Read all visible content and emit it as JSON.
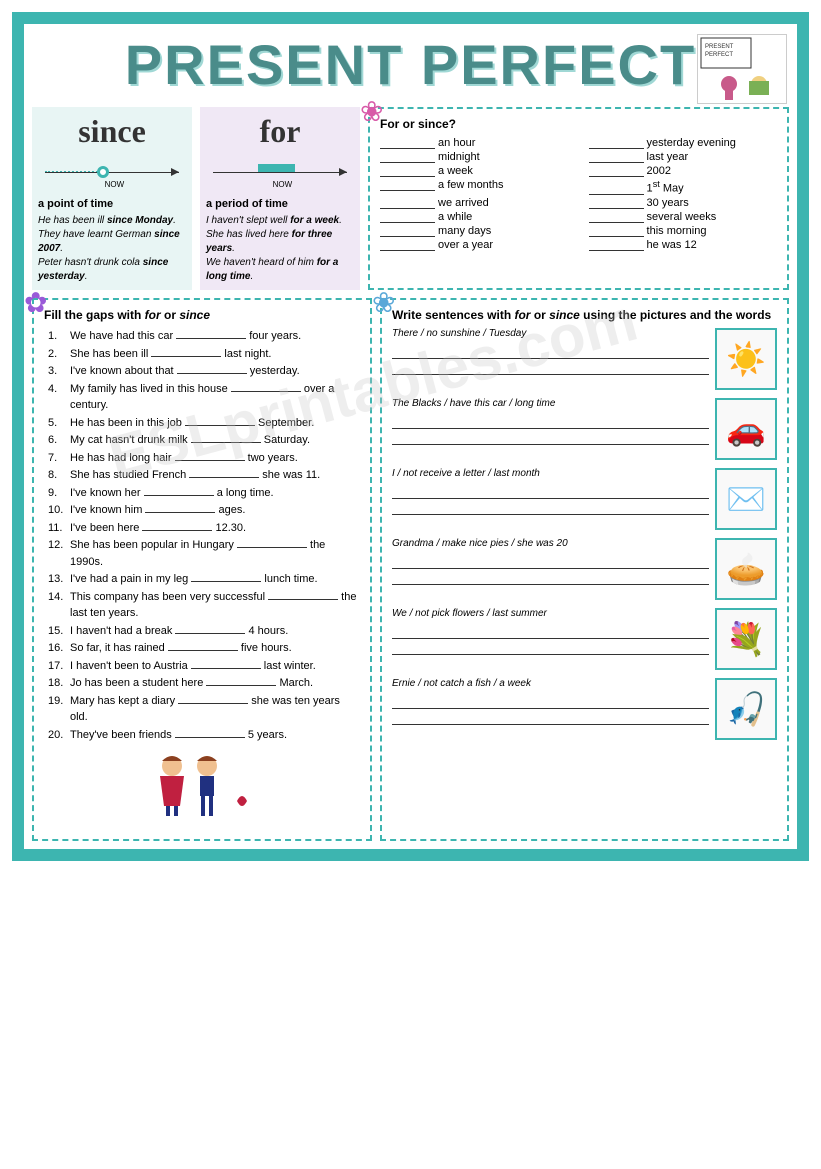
{
  "title": "PRESENT PERFECT",
  "corner_label": "PRESENT PERFECT",
  "since": {
    "word": "since",
    "sub": "a point of time",
    "ex": "He has been ill <b>since Monday</b>.<br>They have learnt German <b>since 2007</b>.<br>Peter hasn't drunk cola <b>since yesterday</b>."
  },
  "for": {
    "word": "for",
    "sub": "a period of time",
    "ex": "I haven't slept well <b>for a week</b>.<br>She has lived here <b>for three years</b>.<br>We haven't heard of him <b>for a long time</b>."
  },
  "ex1": {
    "title": "For or since?",
    "left": [
      "an hour",
      "midnight",
      "a week",
      "a few months",
      "we arrived",
      "a while",
      "many days",
      "over a year"
    ],
    "right": [
      "yesterday evening",
      "last year",
      "2002",
      "1<sup>st</sup> May",
      "30 years",
      "several weeks",
      "this morning",
      "he was 12"
    ]
  },
  "ex2": {
    "title": "Fill the gaps with <i>for</i> or <i>since</i>",
    "items": [
      "We have had this car __________ four years.",
      "She has been ill __________ last night.",
      "I've known about that __________ yesterday.",
      "My family has lived in this house __________ over a century.",
      "He has been in this job __________ September.",
      "My cat hasn't drunk milk __________ Saturday.",
      "He has had long hair __________ two years.",
      "She has studied French __________ she was 11.",
      "I've known her __________ a long time.",
      "I've known him __________ ages.",
      "I've been here __________ 12.30.",
      "She has been popular in Hungary __________ the 1990s.",
      "I've had a pain in my leg __________ lunch time.",
      "This company has been very successful __________ the last ten years.",
      "I haven't had a break __________ 4 hours.",
      "So far, it has rained __________ five hours.",
      "I haven't been to Austria __________ last winter.",
      "Jo has been a student here __________ March.",
      "Mary has kept a diary __________ she was ten years old.",
      "They've been friends __________ 5 years."
    ]
  },
  "ex3": {
    "title": "Write sentences with <i>for</i> or <i>since</i> using the pictures and the words",
    "items": [
      {
        "prompt": "There / no sunshine / Tuesday",
        "icon": "☀️"
      },
      {
        "prompt": "The Blacks / have this car / long time",
        "icon": "🚗"
      },
      {
        "prompt": "I / not receive a letter / last month",
        "icon": "✉️"
      },
      {
        "prompt": "Grandma / make nice pies / she was 20",
        "icon": "🥧"
      },
      {
        "prompt": "We / not pick flowers / last summer",
        "icon": "💐"
      },
      {
        "prompt": "Ernie / not catch a fish / a week",
        "icon": "🎣"
      }
    ]
  },
  "flowers": {
    "f1": "❀",
    "f2": "✿",
    "f3": "❀"
  },
  "colors": {
    "teal": "#3db5b0",
    "since_bg": "#e8f5f4",
    "for_bg": "#f0e8f5"
  },
  "watermark": "ESLprintables.com"
}
